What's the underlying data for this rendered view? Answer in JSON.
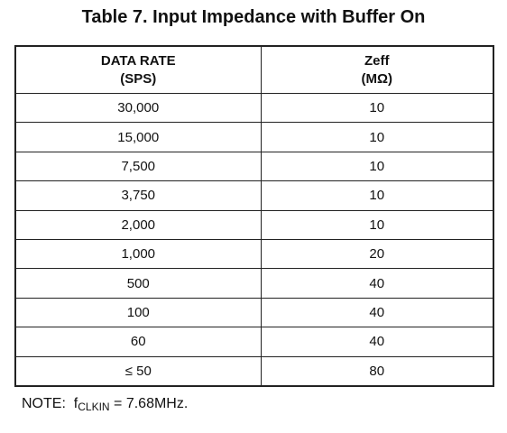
{
  "title": "Table 7. Input Impedance with Buffer On",
  "table": {
    "header": [
      [
        "DATA RATE",
        "(SPS)"
      ],
      [
        "Zeff",
        "(MΩ)"
      ]
    ],
    "rows": [
      [
        "30,000",
        "10"
      ],
      [
        "15,000",
        "10"
      ],
      [
        "7,500",
        "10"
      ],
      [
        "3,750",
        "10"
      ],
      [
        "2,000",
        "10"
      ],
      [
        "1,000",
        "20"
      ],
      [
        "500",
        "40"
      ],
      [
        "100",
        "40"
      ],
      [
        "60",
        "40"
      ],
      [
        "≤ 50",
        "80"
      ]
    ]
  },
  "note": {
    "label": "NOTE:",
    "symbol": "f",
    "subscript": "CLKIN",
    "text": "= 7.68MHz."
  }
}
